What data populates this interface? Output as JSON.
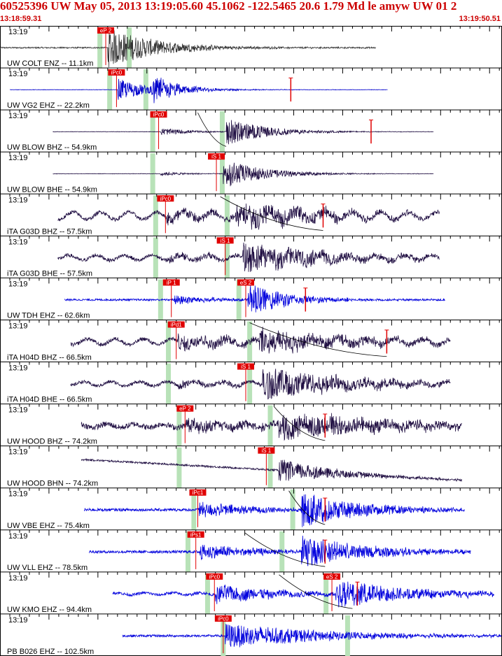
{
  "header": {
    "title": "60525396 UW May 05, 2013 13:19:05.60   45.1062 -122.5465 20.6 1.79 Md le amyw UW 01    2",
    "start_time": "13:18:59.31",
    "end_time": "13:19:50.51"
  },
  "colors": {
    "header_text": "#cc0000",
    "pick": "#e00000",
    "green_band": "#b8e2b8",
    "grid": "#000000",
    "arrival_curve": "#000000"
  },
  "chart_data": {
    "type": "seismogram",
    "x_units": "seconds after 13:18:59.31",
    "xlim": [
      0,
      51.2
    ],
    "time_tick_label": "13:19",
    "seconds_per_tick": 1,
    "traces": [
      {
        "label": "UW COLT ENZ -- 11.1km",
        "color": "#333333",
        "start": 0,
        "end": 38.4,
        "pick": {
          "label": "eP 2",
          "t": 10.8
        },
        "p_green": 10.2,
        "s_green": 13.2,
        "noise": 0.03,
        "wave": 0,
        "events": [
          {
            "t": 11.0,
            "amp": 0.8,
            "decay": 5
          }
        ]
      },
      {
        "label": "UW VG2 EHZ -- 22.2km",
        "color": "#0000cc",
        "start": 1,
        "end": 39.6,
        "pick": {
          "label": "iPc0",
          "t": 11.9
        },
        "p_green": 11.2,
        "s_green": 14.9,
        "noise": 0.01,
        "wave": 0,
        "events": [
          {
            "t": 12.0,
            "amp": 0.45,
            "decay": 3
          },
          {
            "t": 15.5,
            "amp": 0.55,
            "decay": 3
          }
        ],
        "spike": 29.7
      },
      {
        "label": "UW BLOW BHZ -- 54.9km",
        "color": "#221144",
        "start": 5.4,
        "end": 44.3,
        "pick": {
          "label": "iPc0",
          "t": 16.2
        },
        "p_green": 15.6,
        "s_green": 22.7,
        "noise": 0.01,
        "wave": 0,
        "events": [
          {
            "t": 16.4,
            "amp": 0.15,
            "decay": 3
          },
          {
            "t": 23.1,
            "amp": 0.55,
            "decay": 4
          }
        ],
        "spike": 37.9,
        "curve": [
          20.2,
          23.1
        ]
      },
      {
        "label": "UW BLOW BHE -- 54.9km",
        "color": "#221144",
        "start": 5.4,
        "end": 44.3,
        "pick": {
          "label": "iS 1",
          "t": 22.1
        },
        "p_green": 15.6,
        "s_green": 22.7,
        "noise": 0.01,
        "wave": 0,
        "events": [
          {
            "t": 16.4,
            "amp": 0.08,
            "decay": 3
          },
          {
            "t": 22.8,
            "amp": 0.6,
            "decay": 4
          }
        ]
      },
      {
        "label": "iTA G03D BHZ -- 57.5km",
        "color": "#221144",
        "start": 5.9,
        "end": 44.9,
        "pick": {
          "label": "iPc0",
          "t": 16.9
        },
        "p_green": 15.9,
        "s_green": 23.2,
        "noise": 0.08,
        "wave": 0.18,
        "events": [
          {
            "t": 17.0,
            "amp": 0.25,
            "decay": 8
          },
          {
            "t": 24.0,
            "amp": 0.45,
            "decay": 10
          }
        ],
        "spike": 33.0,
        "curve": [
          22.5,
          33.0
        ]
      },
      {
        "label": "iTA G03D BHE -- 57.5km",
        "color": "#221144",
        "start": 5.9,
        "end": 44.9,
        "pick": {
          "label": "iS 1",
          "t": 23.0
        },
        "p_green": 15.9,
        "s_green": 23.2,
        "noise": 0.08,
        "wave": 0.12,
        "events": [
          {
            "t": 17.0,
            "amp": 0.12,
            "decay": 6
          },
          {
            "t": 24.8,
            "amp": 0.6,
            "decay": 8
          }
        ]
      },
      {
        "label": "UW TDH EHZ -- 62.6km",
        "color": "#0000dd",
        "start": 6.6,
        "end": 45.5,
        "pick": {
          "label": "iP 1",
          "t": 17.5
        },
        "p_green": 16.4,
        "s_green": 24.4,
        "noise": 0.04,
        "wave": 0,
        "events": [
          {
            "t": 17.8,
            "amp": 0.2,
            "decay": 4
          },
          {
            "t": 25.3,
            "amp": 0.7,
            "decay": 4
          }
        ],
        "spike": 31.2,
        "pick2": {
          "label": "eS 2",
          "t": 25.1
        }
      },
      {
        "label": "iTA H04D BHZ -- 66.5km",
        "color": "#221144",
        "start": 7.2,
        "end": 46.0,
        "pick": {
          "label": "iPd1",
          "t": 18.0
        },
        "p_green": 17.2,
        "s_green": 25.5,
        "noise": 0.08,
        "wave": 0.14,
        "events": [
          {
            "t": 18.2,
            "amp": 0.3,
            "decay": 7
          },
          {
            "t": 26.5,
            "amp": 0.5,
            "decay": 9
          }
        ],
        "spike": 39.5,
        "curve": [
          25.5,
          39.5
        ]
      },
      {
        "label": "iTA H04D BHE -- 66.5km",
        "color": "#221144",
        "start": 7.2,
        "end": 46.0,
        "pick": {
          "label": "iS 1",
          "t": 25.1
        },
        "p_green": 17.2,
        "s_green": 25.5,
        "noise": 0.07,
        "wave": 0.1,
        "events": [
          {
            "t": 18.2,
            "amp": 0.15,
            "decay": 6
          },
          {
            "t": 26.8,
            "amp": 0.65,
            "decay": 9
          }
        ]
      },
      {
        "label": "UW HOOD BHZ -- 74.2km",
        "color": "#221144",
        "start": 8.3,
        "end": 47.2,
        "pick": {
          "label": "eP 2",
          "t": 18.9
        },
        "p_green": 18.3,
        "s_green": 27.6,
        "noise": 0.12,
        "wave": 0.08,
        "events": [
          {
            "t": 19.0,
            "amp": 0.25,
            "decay": 8
          },
          {
            "t": 28.5,
            "amp": 0.55,
            "decay": 10
          }
        ],
        "spike": 33.2,
        "curve": [
          28.0,
          33.2
        ]
      },
      {
        "label": "UW HOOD BHN -- 74.2km",
        "color": "#221144",
        "start": 8.3,
        "end": 47.2,
        "pick": {
          "label": "iS 1",
          "t": 27.2
        },
        "p_green": 18.3,
        "s_green": 27.6,
        "noise": 0.04,
        "wave": 0,
        "events": [
          {
            "t": 28.5,
            "amp": 0.45,
            "decay": 6
          }
        ],
        "trend": 0.9
      },
      {
        "label": "UW VBE EHZ -- 75.4km",
        "color": "#0000dd",
        "start": 8.6,
        "end": 47.5,
        "pick": {
          "label": "iPc1",
          "t": 20.2
        },
        "p_green": 19.8,
        "s_green": 29.9,
        "noise": 0.06,
        "wave": 0,
        "events": [
          {
            "t": 20.3,
            "amp": 0.3,
            "decay": 6
          },
          {
            "t": 30.8,
            "amp": 0.7,
            "decay": 6
          }
        ],
        "spike": 33.2,
        "curve": [
          29.5,
          33.2
        ]
      },
      {
        "label": "UW VLL EHZ -- 78.5km",
        "color": "#0000dd",
        "start": 9.1,
        "end": 48.1,
        "pick": {
          "label": "iPs1",
          "t": 20.0
        },
        "p_green": 19.2,
        "s_green": 28.8,
        "noise": 0.06,
        "wave": 0,
        "events": [
          {
            "t": 20.3,
            "amp": 0.3,
            "decay": 6
          },
          {
            "t": 30.8,
            "amp": 0.6,
            "decay": 7
          }
        ],
        "spike": 33.2,
        "curve": [
          25.0,
          33.2
        ]
      },
      {
        "label": "UW KMO EHZ -- 94.4km",
        "color": "#0000dd",
        "start": 11.5,
        "end": 50.5,
        "pick": {
          "label": "iPc0",
          "t": 21.9
        },
        "p_green": 21.2,
        "s_green": 33.3,
        "noise": 0.06,
        "wave": 0.05,
        "events": [
          {
            "t": 22.0,
            "amp": 0.35,
            "decay": 7
          },
          {
            "t": 34.3,
            "amp": 0.55,
            "decay": 8
          }
        ],
        "spike": 36.5,
        "curve": [
          28.5,
          36.0
        ],
        "pick2": {
          "label": "eS 2",
          "t": 33.9
        }
      },
      {
        "label": "PB B026 EHZ -- 102.5km",
        "color": "#0000dd",
        "start": 12.5,
        "end": 51.2,
        "pick": {
          "label": "iPc0",
          "t": 22.8
        },
        "p_green": 22.8,
        "s_green": 35.5,
        "noise": 0.05,
        "wave": 0,
        "events": [
          {
            "t": 23.0,
            "amp": 0.5,
            "decay": 10
          }
        ]
      }
    ]
  }
}
